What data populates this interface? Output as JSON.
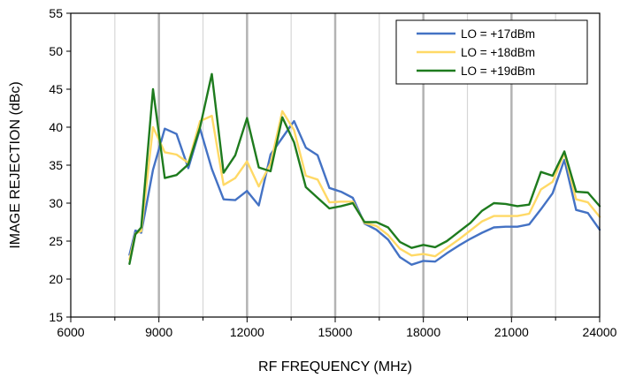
{
  "chart_data": {
    "type": "line",
    "title": "",
    "xlabel": "RF FREQUENCY (MHz)",
    "ylabel": "IMAGE REJECTION (dBc)",
    "xlim": [
      6000,
      24000
    ],
    "ylim": [
      15,
      55
    ],
    "xticks": [
      6000,
      9000,
      12000,
      15000,
      18000,
      21000,
      24000
    ],
    "yticks": [
      15,
      20,
      25,
      30,
      35,
      40,
      45,
      50,
      55
    ],
    "grid": {
      "major_x": true,
      "minor_x": true,
      "major_y": false
    },
    "legend_position": "top-right",
    "series": [
      {
        "name": "LO = +17dBm",
        "color": "#4472C4",
        "x": [
          8000,
          8200,
          8400,
          8800,
          9200,
          9600,
          10000,
          10400,
          10800,
          11200,
          11600,
          12000,
          12400,
          12800,
          13200,
          13600,
          14000,
          14400,
          14800,
          15200,
          15600,
          16000,
          16400,
          16800,
          17200,
          17600,
          18000,
          18400,
          18800,
          19200,
          19600,
          20000,
          20400,
          20800,
          21200,
          21600,
          22000,
          22400,
          22800,
          23200,
          23600,
          24000
        ],
        "y": [
          23.2,
          26.4,
          26.1,
          34.4,
          39.8,
          39.1,
          34.6,
          39.8,
          34.5,
          30.5,
          30.4,
          31.6,
          29.7,
          36.4,
          38.6,
          40.8,
          37.3,
          36.3,
          32.0,
          31.5,
          30.7,
          27.3,
          26.5,
          25.2,
          22.9,
          21.9,
          22.4,
          22.3,
          23.4,
          24.4,
          25.3,
          26.1,
          26.8,
          26.9,
          26.9,
          27.2,
          29.2,
          31.3,
          35.7,
          29.1,
          28.7,
          26.5
        ]
      },
      {
        "name": "LO = +18dBm",
        "color": "#FFD966",
        "x": [
          8000,
          8200,
          8400,
          8800,
          9200,
          9600,
          10000,
          10400,
          10800,
          11200,
          11600,
          12000,
          12400,
          12800,
          13200,
          13600,
          14000,
          14400,
          14800,
          15200,
          15600,
          16000,
          16400,
          16800,
          17200,
          17600,
          18000,
          18400,
          18800,
          19200,
          19600,
          20000,
          20400,
          20800,
          21200,
          21600,
          22000,
          22400,
          22800,
          23200,
          23600,
          24000
        ],
        "y": [
          22.6,
          26.0,
          26.3,
          40.0,
          36.7,
          36.4,
          35.3,
          40.8,
          41.5,
          32.4,
          33.3,
          35.5,
          32.2,
          35.2,
          42.1,
          39.6,
          33.6,
          33.1,
          30.1,
          30.2,
          30.2,
          27.4,
          27.0,
          25.8,
          24.0,
          23.1,
          23.3,
          23.0,
          24.1,
          25.2,
          26.4,
          27.6,
          28.3,
          28.3,
          28.3,
          28.6,
          31.8,
          32.8,
          36.6,
          30.5,
          30.1,
          28.2
        ]
      },
      {
        "name": "LO = +19dBm",
        "color": "#1E7B1E",
        "x": [
          8000,
          8200,
          8400,
          8800,
          9200,
          9600,
          10000,
          10400,
          10800,
          11200,
          11600,
          12000,
          12400,
          12800,
          13200,
          13600,
          14000,
          14400,
          14800,
          15200,
          15600,
          16000,
          16400,
          16800,
          17200,
          17600,
          18000,
          18400,
          18800,
          19200,
          19600,
          20000,
          20400,
          20800,
          21200,
          21600,
          22000,
          22400,
          22800,
          23200,
          23600,
          24000
        ],
        "y": [
          22.0,
          25.9,
          26.8,
          45.0,
          33.3,
          33.7,
          35.1,
          40.0,
          47.0,
          34.0,
          36.3,
          41.2,
          34.7,
          34.2,
          41.3,
          38.0,
          32.1,
          30.7,
          29.3,
          29.6,
          30.0,
          27.5,
          27.5,
          26.8,
          24.9,
          24.1,
          24.5,
          24.2,
          25.0,
          26.2,
          27.4,
          29.0,
          30.0,
          29.9,
          29.6,
          29.8,
          34.1,
          33.6,
          36.8,
          31.5,
          31.4,
          29.6
        ]
      }
    ]
  }
}
